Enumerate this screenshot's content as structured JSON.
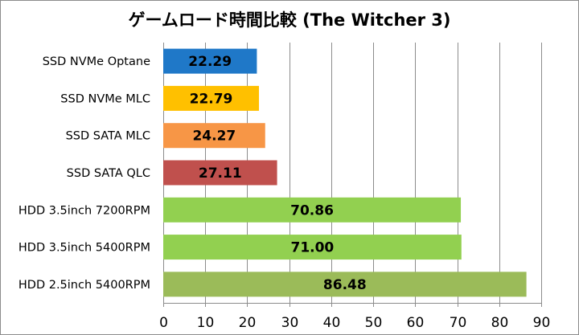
{
  "chart_data": {
    "type": "bar",
    "orientation": "horizontal",
    "title": "ゲームロード時間比較 (The Witcher 3)",
    "xlabel": "",
    "ylabel": "",
    "categories": [
      "SSD NVMe Optane",
      "SSD NVMe MLC",
      "SSD SATA MLC",
      "SSD SATA QLC",
      "HDD 3.5inch 7200RPM",
      "HDD 3.5inch 5400RPM",
      "HDD 2.5inch 5400RPM"
    ],
    "values": [
      22.29,
      22.79,
      24.27,
      27.11,
      70.86,
      71.0,
      86.48
    ],
    "value_labels": [
      "22.29",
      "22.79",
      "24.27",
      "27.11",
      "70.86",
      "71.00",
      "86.48"
    ],
    "colors": [
      "#1f78c8",
      "#ffc000",
      "#f79646",
      "#c0504d",
      "#92d050",
      "#92d050",
      "#9bbb59"
    ],
    "xlim": [
      0,
      90
    ],
    "xticks": [
      0,
      10,
      20,
      30,
      40,
      50,
      60,
      70,
      80,
      90
    ],
    "grid": "vertical",
    "legend": "none"
  }
}
